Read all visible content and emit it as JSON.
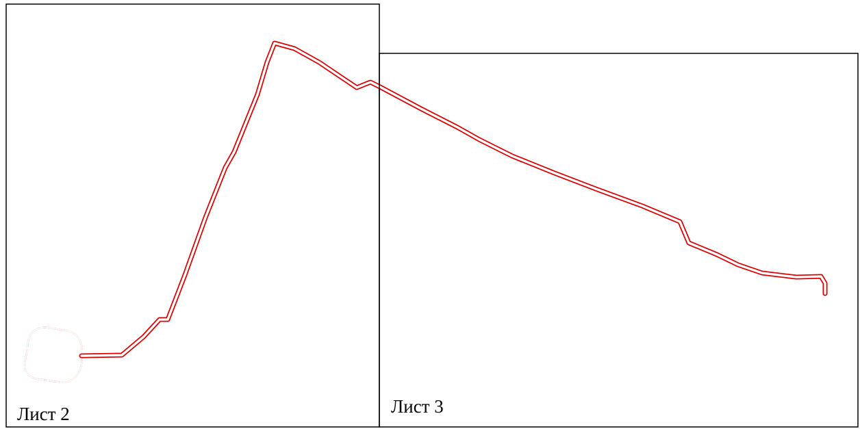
{
  "sheets": [
    {
      "label": "Лист 2"
    },
    {
      "label": "Лист 3"
    }
  ],
  "colors": {
    "route": "#e00000",
    "frame": "#000000",
    "background": "#ffffff"
  }
}
